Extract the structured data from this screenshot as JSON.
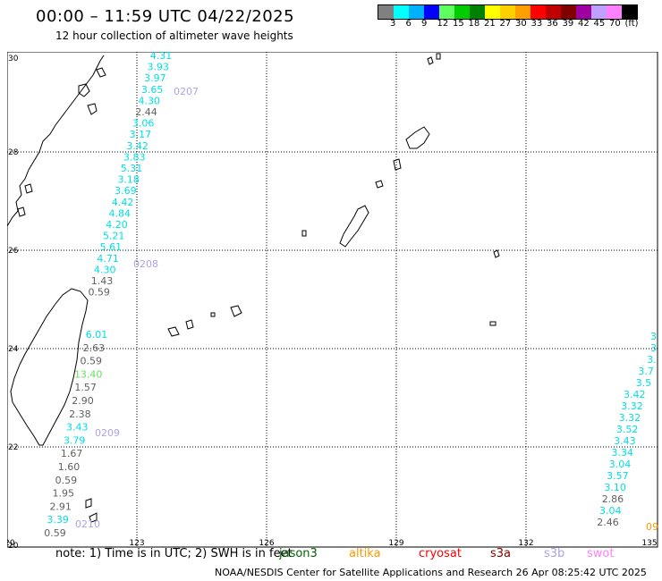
{
  "title": "00:00 – 11:59 UTC 04/22/2025",
  "subtitle": "12 hour collection of altimeter wave heights",
  "colorbar": {
    "colors": [
      "#808080",
      "#00ffff",
      "#00b0ff",
      "#0000ff",
      "#60ff60",
      "#00cc00",
      "#008000",
      "#ffff00",
      "#ffd000",
      "#ffa000",
      "#ff0000",
      "#c00000",
      "#800000",
      "#a000a0",
      "#c0a0ff",
      "#ff80ff",
      "#000000"
    ],
    "labels": [
      "3",
      "6",
      "9",
      "12",
      "15",
      "18",
      "21",
      "27",
      "30",
      "33",
      "36",
      "39",
      "42",
      "45",
      "70",
      "(ft)"
    ]
  },
  "axes": {
    "lon_ticks": [
      "120",
      "123",
      "126",
      "129",
      "132",
      "135"
    ],
    "lat_ticks": [
      "30",
      "28",
      "26",
      "24",
      "22",
      "20"
    ]
  },
  "tracks": [
    {
      "name": "0207",
      "color": "#b0a0e8"
    },
    {
      "name": "0208",
      "color": "#b0a0e8"
    },
    {
      "name": "0209",
      "color": "#b0a0e8"
    },
    {
      "name": "0210",
      "color": "#b0a0e8"
    },
    {
      "name": "09",
      "color": "#ff9900"
    }
  ],
  "track_a": {
    "values": [
      "4.31",
      "3.93",
      "3.97",
      "3.65",
      "4.30",
      "2.44",
      "3.06",
      "3.17",
      "3.42",
      "3.83",
      "5.31",
      "3.18",
      "3.69",
      "4.42",
      "4.84",
      "4.20",
      "5.21",
      "5.61",
      "4.71",
      "4.30",
      "1.43",
      "0.59"
    ],
    "colors": [
      "c",
      "c",
      "c",
      "c",
      "c",
      "g",
      "c",
      "c",
      "c",
      "c",
      "c",
      "c",
      "c",
      "c",
      "c",
      "c",
      "c",
      "c",
      "c",
      "c",
      "g",
      "g"
    ]
  },
  "track_b": {
    "values": [
      "6.01",
      "2.63",
      "0.59",
      "13.40",
      "1.57",
      "2.90",
      "2.38",
      "3.43",
      "3.79",
      "1.67",
      "1.60",
      "0.59",
      "1.95",
      "2.91",
      "3.39",
      "0.59"
    ],
    "colors": [
      "c",
      "g",
      "g",
      "lg",
      "g",
      "g",
      "g",
      "c",
      "c",
      "g",
      "g",
      "g",
      "g",
      "g",
      "c",
      "g"
    ]
  },
  "track_c": {
    "values": [
      "3",
      "3",
      "3.",
      "3.7",
      "3.5",
      "3.42",
      "3.32",
      "3.32",
      "3.52",
      "3.43",
      "3.34",
      "3.04",
      "3.57",
      "3.10",
      "2.86",
      "3.04",
      "2.46"
    ],
    "colors": [
      "c",
      "c",
      "c",
      "c",
      "c",
      "c",
      "c",
      "c",
      "c",
      "c",
      "c",
      "c",
      "c",
      "c",
      "g",
      "c",
      "g"
    ]
  },
  "value_colors": {
    "c": "#00e0e0",
    "g": "#606060",
    "lg": "#60e060"
  },
  "note": "note: 1) Time is in UTC; 2) SWH is in feet",
  "satellites": [
    {
      "name": "jason3",
      "color": "#006400"
    },
    {
      "name": "altika",
      "color": "#ff9900"
    },
    {
      "name": "cryosat",
      "color": "#ff0000"
    },
    {
      "name": "s3a",
      "color": "#8b0000"
    },
    {
      "name": "s3b",
      "color": "#b0a0e8"
    },
    {
      "name": "swot",
      "color": "#ff80ff"
    }
  ],
  "credit": "NOAA/NESDIS Center for Satellite Applications and Research    26 Apr 08:25:42 UTC 2025"
}
